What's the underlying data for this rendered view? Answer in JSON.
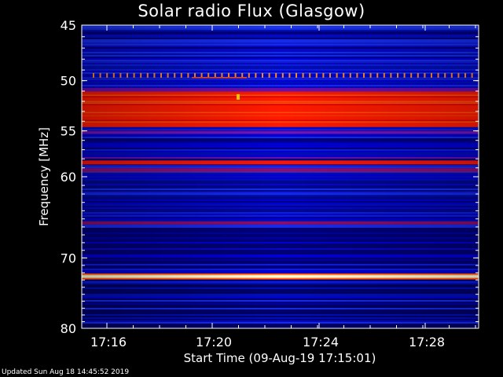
{
  "chart_data": {
    "type": "heatmap",
    "title": "Solar radio Flux (Glasgow)",
    "ylabel": "Frequency [MHz]",
    "xlabel": "Start Time (09-Aug-19 17:15:01)",
    "y_axis": {
      "range": [
        45,
        80
      ],
      "scale": "log",
      "ticks": [
        45,
        50,
        55,
        60,
        70,
        80
      ],
      "tick_labels": [
        "45",
        "50",
        "55",
        "60",
        "70",
        "80"
      ]
    },
    "x_axis": {
      "tick_labels": [
        "17:16",
        "17:20",
        "17:24",
        "17:28"
      ]
    },
    "colormap": [
      "#00004a",
      "#0000c8",
      "#1a3cff",
      "#7a1aa0",
      "#ff1a00",
      "#ffe060",
      "#ffffff"
    ],
    "bands": [
      {
        "freq": 49.5,
        "intensity": "periodic spikes"
      },
      {
        "freq": 51.5,
        "intensity": "high"
      },
      {
        "freq": 52.5,
        "intensity": "high"
      },
      {
        "freq": 54.0,
        "intensity": "high"
      },
      {
        "freq": 58.4,
        "intensity": "high"
      },
      {
        "freq": 59.3,
        "intensity": "medium"
      },
      {
        "freq": 65.5,
        "intensity": "medium"
      },
      {
        "freq": 72.5,
        "intensity": "saturated"
      }
    ],
    "grid": false
  },
  "footer": "Updated Sun Aug 18 14:45:52 2019"
}
